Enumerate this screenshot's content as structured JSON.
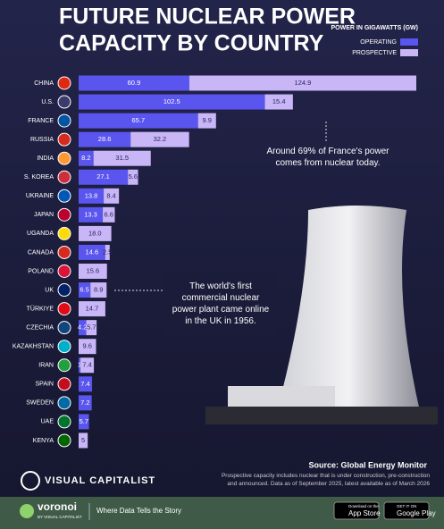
{
  "chart_data": {
    "type": "bar",
    "orientation": "horizontal",
    "stacked": true,
    "title_lines": [
      "FUTURE NUCLEAR POWER",
      "CAPACITY BY COUNTRY"
    ],
    "legend_title": "POWER IN GIGAWATTS (GW)",
    "categories": [
      "CHINA",
      "U.S.",
      "FRANCE",
      "RUSSIA",
      "INDIA",
      "S. KOREA",
      "UKRAINE",
      "JAPAN",
      "UGANDA",
      "CANADA",
      "POLAND",
      "UK",
      "TÜRKIYE",
      "CZECHIA",
      "KAZAKHSTAN",
      "IRAN",
      "SPAIN",
      "SWEDEN",
      "UAE",
      "KENYA"
    ],
    "series": [
      {
        "name": "OPERATING",
        "color": "#5a55ee",
        "values": [
          60.9,
          102.5,
          65.7,
          28.6,
          8.2,
          27.1,
          13.8,
          13.3,
          null,
          14.6,
          null,
          6.5,
          null,
          4.2,
          null,
          1,
          7.4,
          7.2,
          5.7,
          null
        ]
      },
      {
        "name": "PROSPECTIVE",
        "color": "#c8b6f6",
        "values": [
          124.9,
          15.4,
          9.9,
          32.2,
          31.5,
          5.6,
          8.4,
          6.6,
          18,
          2.5,
          15.6,
          8.9,
          14.7,
          5.7,
          9.6,
          7.4,
          null,
          null,
          null,
          5
        ],
        "value_labels": [
          null,
          null,
          null,
          null,
          null,
          null,
          null,
          null,
          "18.0",
          null,
          null,
          null,
          null,
          null,
          null,
          null,
          null,
          null,
          null,
          null
        ]
      }
    ],
    "annotations": [
      "Around 69% of France's power comes from nuclear today.",
      "The world's first commercial nuclear power plant came online in the UK in 1956."
    ],
    "source": "Source: Global Energy Monitor",
    "note": "Prospective capacity includes nuclear that is under construction, pre-construction and announced. Data as of September 2025, latest available as of March 2026"
  },
  "branding": {
    "publisher": "VISUAL CAPITALIST",
    "product": "voronoi",
    "product_by": "BY VISUAL CAPITALIST",
    "tagline": "Where Data Tells the Story",
    "app_store_small": "Download on the",
    "app_store": "App Store",
    "google_small": "GET IT ON",
    "google": "Google Play"
  }
}
